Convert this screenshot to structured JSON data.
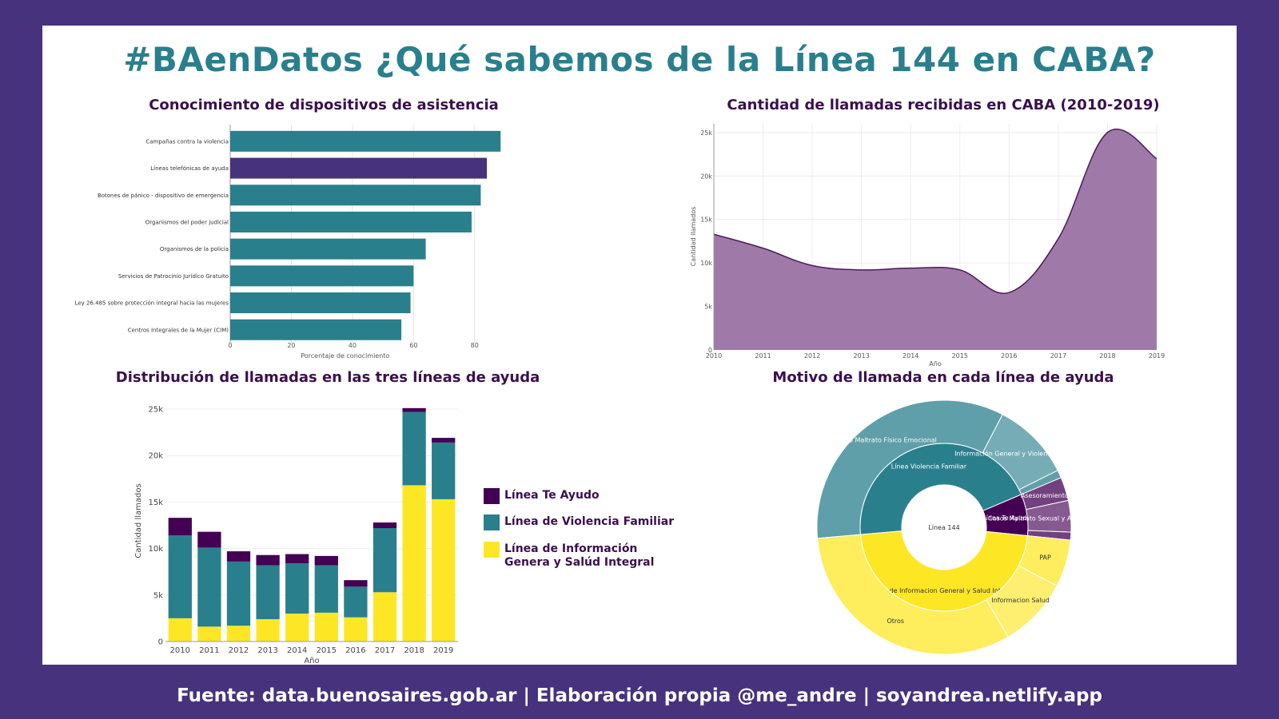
{
  "title": "#BAenDatos ¿Qué sabemos de la Línea 144 en CABA?",
  "footer": "Fuente: data.buenosaires.gob.ar  | Elaboración propia @me_andre | soyandrea.netlify.app",
  "colors": {
    "background": "#46327d",
    "teal": "#2a7f8d",
    "purple": "#46327d",
    "dark_purple": "#440154",
    "yellow": "#fde725",
    "area_fill": "#9f7aa8",
    "area_line": "#4a1a5a"
  },
  "chart_data": [
    {
      "type": "bar",
      "orientation": "horizontal",
      "title": "Conocimiento de dispositivos de asistencia",
      "xlabel": "Porcentaje de conocimiento",
      "ylabel": "",
      "xlim": [
        0,
        90
      ],
      "xticks": [
        0,
        20,
        40,
        60,
        80
      ],
      "categories": [
        "Campañas contra la violencia",
        "Líneas telefónicas de ayuda",
        "Botones de pánico - dispositivo de emergencia",
        "Organismos del poder judicial",
        "Organismos de la policía",
        "Servicios de Patrocinio Jurídico Gratuito",
        "Ley 26.485 sobre protección integral hacia las mujeres",
        "Centros Integrales de la Mujer (CIM)"
      ],
      "values": [
        88.5,
        84,
        82,
        79,
        64,
        60,
        59,
        56
      ],
      "highlight": "Líneas telefónicas de ayuda",
      "grid": true
    },
    {
      "type": "area",
      "title": "Cantidad de llamadas recibidas en CABA (2010-2019)",
      "xlabel": "Año",
      "ylabel": "Cantidad llamados",
      "x": [
        2010,
        2011,
        2012,
        2013,
        2014,
        2015,
        2016,
        2017,
        2018,
        2019
      ],
      "values": [
        13300,
        11700,
        9700,
        9200,
        9400,
        9200,
        6600,
        12800,
        25000,
        22000
      ],
      "ylim": [
        0,
        26000
      ],
      "yticks": [
        "0",
        "5k",
        "10k",
        "15k",
        "20k",
        "25k"
      ],
      "grid": true
    },
    {
      "type": "bar",
      "stacked": true,
      "title": "Distribución de llamadas en las tres líneas de ayuda",
      "xlabel": "Año",
      "ylabel": "Cantidad llamados",
      "categories": [
        "2010",
        "2011",
        "2012",
        "2013",
        "2014",
        "2015",
        "2016",
        "2017",
        "2018",
        "2019"
      ],
      "ylim": [
        0,
        25000
      ],
      "yticks": [
        "0",
        "5k",
        "10k",
        "15k",
        "20k",
        "25k"
      ],
      "legend_position": "right",
      "series": [
        {
          "name": "Línea de Información Genera y Salúd Integral",
          "color": "#fde725",
          "values": [
            2500,
            1600,
            1700,
            2400,
            3000,
            3100,
            2600,
            5300,
            16800,
            15300
          ]
        },
        {
          "name": "Línea de Violencia Familiar",
          "color": "#2a7f8d",
          "values": [
            8900,
            8500,
            6900,
            5800,
            5400,
            5100,
            3300,
            6900,
            7900,
            6100
          ]
        },
        {
          "name": "Línea Te Ayudo",
          "color": "#440154",
          "values": [
            1900,
            1700,
            1100,
            1100,
            1000,
            1000,
            700,
            600,
            400,
            500
          ]
        }
      ]
    },
    {
      "type": "sunburst",
      "title": "Motivo de llamada en cada línea de ayuda",
      "root": "Línea 144",
      "children": [
        {
          "name": "Línea Violencia Familiar",
          "value": 45,
          "color": "#2a7f8d",
          "children": [
            {
              "name": "Casos Maltrato Físico Emocional",
              "value": 34
            },
            {
              "name": "Información General y Violencia Familiar",
              "value": 10
            },
            {
              "name": "Otros",
              "value": 1
            }
          ]
        },
        {
          "name": "Línea Te Ayudo",
          "value": 8,
          "color": "#440154",
          "children": [
            {
              "name": "Asesoramiento",
              "value": 3
            },
            {
              "name": "Casos Maltrato Sexual y Abuso Sexual",
              "value": 4
            },
            {
              "name": "Otros",
              "value": 1
            }
          ]
        },
        {
          "name": "Línea de Informacion General y Salud Integral",
          "value": 47,
          "color": "#fde725",
          "children": [
            {
              "name": "PAP",
              "value": 6
            },
            {
              "name": "Informacion Salud",
              "value": 9
            },
            {
              "name": "Otros",
              "value": 32
            }
          ]
        }
      ]
    }
  ]
}
